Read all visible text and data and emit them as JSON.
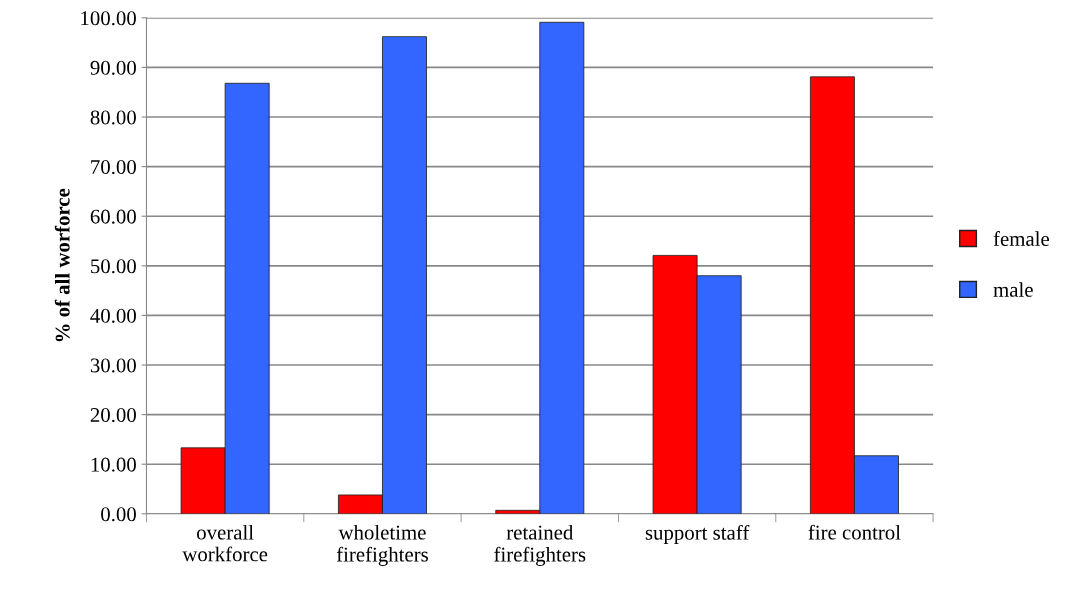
{
  "chart_data": {
    "type": "bar",
    "ylabel": "% of all worforce",
    "categories": [
      "overall\nworkforce",
      "wholetime\nfirefighters",
      "retained\nfirefighters",
      "support staff",
      "fire control"
    ],
    "series": [
      {
        "name": "female",
        "color": "#ff0000",
        "values": [
          13.3,
          3.8,
          0.7,
          52.1,
          88.1
        ]
      },
      {
        "name": "male",
        "color": "#3366ff",
        "values": [
          86.8,
          96.2,
          99.1,
          48.0,
          11.7
        ]
      }
    ],
    "ylim": [
      0,
      100
    ],
    "yticks": [
      {
        "value": 0,
        "label": "0.00"
      },
      {
        "value": 10,
        "label": "10.00"
      },
      {
        "value": 20,
        "label": "20.00"
      },
      {
        "value": 30,
        "label": "30.00"
      },
      {
        "value": 40,
        "label": "40.00"
      },
      {
        "value": 50,
        "label": "50.00"
      },
      {
        "value": 60,
        "label": "60.00"
      },
      {
        "value": 70,
        "label": "70.00"
      },
      {
        "value": 80,
        "label": "80.00"
      },
      {
        "value": 90,
        "label": "90.00"
      },
      {
        "value": 100,
        "label": "100.00"
      }
    ],
    "grid": "y",
    "legend": "right"
  }
}
